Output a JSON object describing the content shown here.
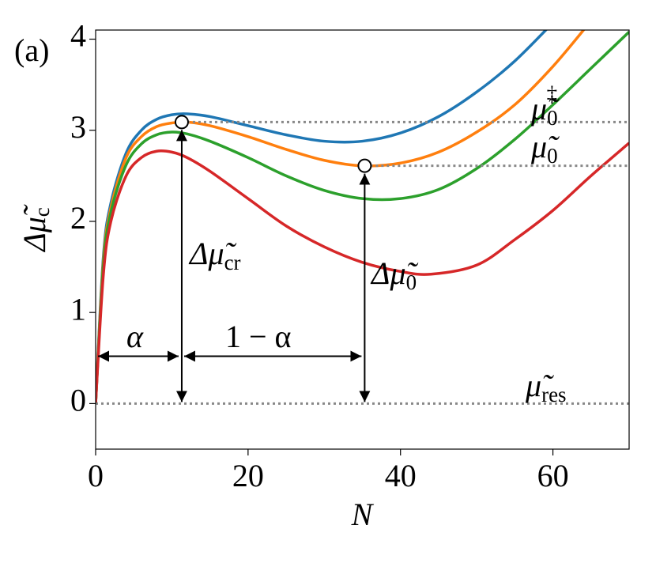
{
  "chart_data": {
    "type": "line",
    "panel_label": "(a)",
    "x_label": "N",
    "y_label": {
      "text": "Δμ̃",
      "sub": "c"
    },
    "xlim": [
      0,
      70
    ],
    "xticks": [
      0,
      20,
      40,
      60
    ],
    "ylim": [
      -0.5,
      4.1
    ],
    "yticks": [
      0,
      1,
      2,
      3,
      4
    ],
    "series": [
      {
        "color": "#1f77b4",
        "x": [
          0,
          1,
          2,
          4,
          6,
          8,
          10,
          12,
          15,
          20,
          25,
          30,
          35,
          40,
          45,
          50,
          55,
          60
        ],
        "values": [
          0,
          1.6,
          2.2,
          2.75,
          3.0,
          3.12,
          3.17,
          3.18,
          3.15,
          3.05,
          2.95,
          2.88,
          2.88,
          2.97,
          3.15,
          3.42,
          3.76,
          4.18
        ]
      },
      {
        "color": "#ff7f0e",
        "x": [
          0,
          1,
          2,
          4,
          6,
          8,
          10,
          12,
          15,
          20,
          25,
          30,
          35,
          40,
          45,
          50,
          55,
          60,
          65
        ],
        "values": [
          0,
          1.55,
          2.15,
          2.7,
          2.93,
          3.04,
          3.08,
          3.09,
          3.05,
          2.93,
          2.79,
          2.67,
          2.61,
          2.64,
          2.76,
          2.98,
          3.28,
          3.7,
          4.2
        ]
      },
      {
        "color": "#2ca02c",
        "x": [
          0,
          1,
          2,
          4,
          6,
          8,
          10,
          12,
          15,
          20,
          25,
          30,
          35,
          40,
          45,
          50,
          55,
          60,
          65,
          70
        ],
        "values": [
          0,
          1.5,
          2.1,
          2.62,
          2.85,
          2.95,
          2.98,
          2.96,
          2.88,
          2.7,
          2.5,
          2.34,
          2.25,
          2.25,
          2.35,
          2.58,
          2.9,
          3.28,
          3.68,
          4.08
        ]
      },
      {
        "color": "#d62728",
        "x": [
          0,
          1,
          2,
          4,
          6,
          8,
          10,
          12,
          15,
          20,
          25,
          30,
          35,
          40,
          44,
          50,
          55,
          60,
          65,
          70
        ],
        "values": [
          0,
          1.4,
          2.0,
          2.5,
          2.7,
          2.77,
          2.76,
          2.7,
          2.55,
          2.25,
          1.95,
          1.72,
          1.55,
          1.45,
          1.42,
          1.52,
          1.8,
          2.12,
          2.5,
          2.86
        ]
      }
    ],
    "markers": [
      {
        "x": 11.3,
        "y": 3.09
      },
      {
        "x": 35.3,
        "y": 2.61
      }
    ],
    "reference_y": 0,
    "arrow_y": 0.52,
    "annotations": {
      "alpha": "α",
      "one_minus_alpha": "1 − α",
      "delta_mu_cr": {
        "text": "Δμ̃",
        "sub": "cr"
      },
      "delta_mu_0": {
        "text": "Δμ̃",
        "sub": "0"
      },
      "mu_0_dagger": {
        "text": "μ̃",
        "sub": "0",
        "sup": "‡"
      },
      "mu_0": {
        "text": "μ̃",
        "sub": "0"
      },
      "mu_res": {
        "text": "μ̃",
        "sub": "res"
      }
    }
  }
}
